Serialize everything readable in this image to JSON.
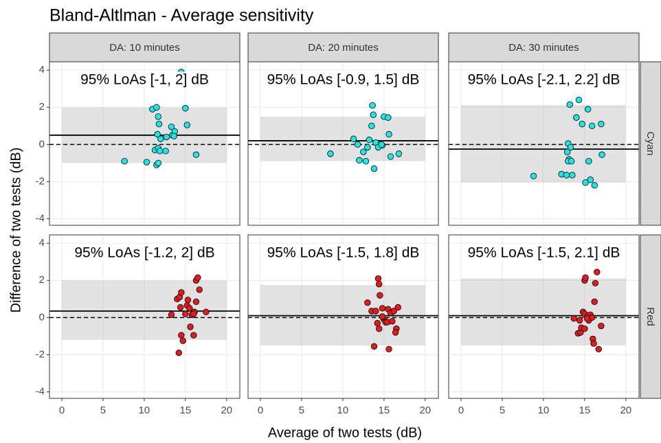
{
  "chart_data": {
    "type": "scatter",
    "title": "Bland-Altlman - Average sensitivity",
    "xlabel": "Average of two tests (dB)",
    "ylabel": "Difference of two tests (dB)",
    "xlim": [
      -1.5,
      21.6
    ],
    "ylim": [
      -4.35,
      4.45
    ],
    "xticks": [
      0,
      5,
      10,
      15,
      20
    ],
    "yticks": [
      -4,
      -2,
      0,
      2,
      4
    ],
    "grid": true,
    "reference": 0,
    "columns": [
      "DA: 10 minutes",
      "DA: 20 minutes",
      "DA: 30 minutes"
    ],
    "rows": [
      {
        "name": "Cyan",
        "color": "#1ee6e6",
        "panels": [
          {
            "annotation": "95% LoAs [-1, 2] dB",
            "band_x": [
              0,
              20
            ],
            "mean": 0.5,
            "loa_lower": -1,
            "loa_upper": 2,
            "x": [
              7.6,
              10.3,
              11.0,
              11.5,
              11.7,
              11.8,
              11.6,
              11.3,
              11.7,
              11.9,
              11.5,
              11.7,
              12.6,
              12.7,
              13.3,
              13.4,
              13.7,
              13.6,
              14.5,
              15.0,
              15.2,
              16.3,
              12.0
            ],
            "values": [
              -0.9,
              -0.95,
              1.9,
              2.0,
              1.5,
              1.1,
              0.55,
              -0.3,
              -0.2,
              -0.35,
              -1.1,
              -1.0,
              -0.35,
              0.4,
              0.95,
              0.5,
              0.7,
              0.45,
              3.9,
              1.95,
              1.05,
              -0.55,
              0.3
            ]
          },
          {
            "annotation": "95% LoAs [-0.9, 1.5] dB",
            "band_x": [
              0,
              20
            ],
            "mean": 0.2,
            "loa_lower": -0.9,
            "loa_upper": 1.5,
            "x": [
              8.5,
              11.3,
              11.8,
              12.0,
              12.5,
              12.8,
              13.0,
              13.2,
              13.5,
              13.6,
              13.7,
              13.8,
              14.0,
              14.3,
              14.8,
              15.0,
              15.5,
              15.6,
              15.8,
              16.8,
              14.7
            ],
            "values": [
              -0.5,
              0.3,
              0.0,
              -0.85,
              -0.4,
              -0.9,
              -0.15,
              0.25,
              1.0,
              2.1,
              1.6,
              -1.3,
              0.1,
              -0.15,
              -0.05,
              1.5,
              1.45,
              0.55,
              -0.65,
              -0.5,
              0.0
            ]
          },
          {
            "annotation": "95% LoAs [-2.1, 2.2] dB",
            "band_x": [
              0,
              20
            ],
            "mean": -0.25,
            "loa_lower": -2.05,
            "loa_upper": 2.12,
            "x": [
              8.8,
              12.2,
              12.8,
              13.0,
              12.9,
              13.1,
              13.3,
              13.0,
              13.2,
              13.5,
              14.0,
              14.3,
              14.7,
              15.1,
              15.4,
              15.5,
              15.9,
              15.7,
              16.2,
              17.0,
              17.1,
              13.4
            ],
            "values": [
              -1.7,
              -1.6,
              -1.65,
              0.05,
              -0.4,
              -0.8,
              -0.15,
              -0.9,
              2.15,
              -1.65,
              1.45,
              2.4,
              1.1,
              -2.05,
              1.9,
              -0.9,
              1.0,
              -1.9,
              -2.2,
              1.1,
              -0.55,
              -0.9
            ]
          }
        ]
      },
      {
        "name": "Red",
        "color": "#e41a1c",
        "panels": [
          {
            "annotation": "95% LoAs [-1.2, 2] dB",
            "band_x": [
              0,
              20
            ],
            "mean": 0.35,
            "loa_lower": -1.2,
            "loa_upper": 2,
            "x": [
              13.3,
              14.0,
              14.3,
              14.5,
              14.4,
              14.2,
              14.5,
              14.7,
              15.0,
              15.2,
              15.3,
              15.5,
              15.6,
              15.8,
              16.0,
              16.1,
              16.3,
              16.3,
              16.5,
              16.7,
              17.5,
              16.0
            ],
            "values": [
              0.15,
              1.0,
              1.1,
              1.35,
              0.55,
              -1.9,
              -0.95,
              -1.25,
              0.2,
              0.65,
              0.95,
              0.5,
              -0.5,
              0.15,
              -0.95,
              0.3,
              0.85,
              2.0,
              2.15,
              1.5,
              0.3,
              0.2
            ]
          },
          {
            "annotation": "95% LoAs [-1.5, 1.8] dB",
            "band_x": [
              0,
              20
            ],
            "mean": 0.1,
            "loa_lower": -1.5,
            "loa_upper": 1.75,
            "x": [
              13.0,
              13.5,
              13.8,
              14.0,
              14.3,
              14.4,
              14.5,
              14.2,
              14.4,
              14.8,
              15.0,
              15.2,
              15.4,
              15.6,
              15.5,
              15.8,
              16.0,
              16.2,
              16.5,
              16.4,
              16.7,
              14.8
            ],
            "values": [
              0.8,
              0.35,
              -1.55,
              0.35,
              2.1,
              1.8,
              1.2,
              -0.3,
              -0.6,
              0.5,
              -0.1,
              -0.25,
              -0.25,
              -1.7,
              0.45,
              0.25,
              -0.2,
              0.35,
              -0.6,
              -0.8,
              0.55,
              0.05
            ]
          },
          {
            "annotation": "95% LoAs [-1.5, 2.1] dB",
            "band_x": [
              0,
              20
            ],
            "mean": 0.1,
            "loa_lower": -1.5,
            "loa_upper": 2.1,
            "x": [
              13.7,
              14.2,
              14.5,
              14.4,
              14.6,
              14.8,
              15.0,
              15.0,
              15.1,
              15.0,
              15.4,
              15.5,
              15.7,
              15.9,
              16.0,
              16.2,
              16.3,
              16.5,
              16.1,
              16.7,
              17.0,
              15.3
            ],
            "values": [
              -0.05,
              -0.85,
              -0.8,
              -0.15,
              -0.55,
              0.3,
              -0.6,
              2.0,
              2.15,
              0.2,
              0.1,
              -0.15,
              0.15,
              0.0,
              -1.15,
              0.85,
              1.85,
              2.45,
              -1.4,
              -1.7,
              -0.45,
              -0.05
            ]
          }
        ]
      }
    ]
  }
}
